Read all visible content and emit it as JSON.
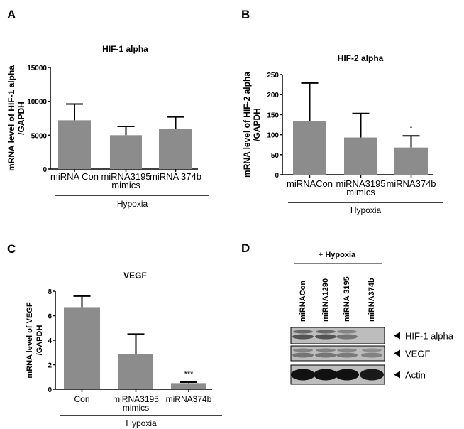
{
  "panel_letters": [
    "A",
    "B",
    "C",
    "D"
  ],
  "colors": {
    "bar": "#8c8c8c",
    "ink": "#000000",
    "blot_bg": "#bdbdbd",
    "band": "#3a3a3a"
  },
  "chart_data": [
    {
      "type": "bar",
      "panel": "A",
      "title": "HIF-1 alpha",
      "ylabel": [
        "mRNA level of HIF-1 alpha",
        "/GAPDH"
      ],
      "categories": [
        [
          "miRNA Con"
        ],
        [
          "miRNA3195",
          "mimics"
        ],
        [
          "miRNA 374b"
        ]
      ],
      "values": [
        7200,
        5000,
        5900
      ],
      "error_upper": [
        9600,
        6300,
        7700
      ],
      "significance": [
        "",
        "",
        ""
      ],
      "ylim": [
        0,
        15000
      ],
      "yticks": [
        0,
        5000,
        10000,
        15000
      ],
      "group_label": "Hypoxia"
    },
    {
      "type": "bar",
      "panel": "B",
      "title": "HIF-2 alpha",
      "ylabel": [
        "mRNA level of HIF-2 alpha",
        "/GAPDH"
      ],
      "categories": [
        [
          "miRNACon"
        ],
        [
          "miRNA3195",
          "mimics"
        ],
        [
          "miRNA374b"
        ]
      ],
      "values": [
        133,
        93,
        68
      ],
      "error_upper": [
        229,
        153,
        97
      ],
      "significance": [
        "",
        "",
        "*"
      ],
      "ylim": [
        0,
        250
      ],
      "yticks": [
        0,
        50,
        100,
        150,
        200,
        250
      ],
      "group_label": "Hypoxia"
    },
    {
      "type": "bar",
      "panel": "C",
      "title": "VEGF",
      "ylabel": [
        "mRNA level of VEGF",
        "/GAPDH"
      ],
      "categories": [
        [
          "Con"
        ],
        [
          "miRNA3195",
          "mimics"
        ],
        [
          "miRNA374b"
        ]
      ],
      "values": [
        6.7,
        2.85,
        0.5
      ],
      "error_upper": [
        7.6,
        4.5,
        0.58
      ],
      "significance": [
        "",
        "",
        "***"
      ],
      "ylim": [
        0,
        8
      ],
      "yticks": [
        0,
        2,
        4,
        6,
        8
      ],
      "group_label": "Hypoxia"
    }
  ],
  "western_blot": {
    "panel": "D",
    "header": "+ Hypoxia",
    "lanes": [
      "miRNACon",
      "miRNA1290",
      "miRNA 3195",
      "miRNA374b"
    ],
    "rows": [
      {
        "label": "HIF-1 alpha",
        "intensity": [
          0.8,
          0.8,
          0.55,
          0.0
        ]
      },
      {
        "label": "VEGF",
        "intensity": [
          0.55,
          0.55,
          0.5,
          0.45
        ]
      },
      {
        "label": "Actin",
        "intensity": [
          1.0,
          1.0,
          1.0,
          0.95
        ]
      }
    ]
  }
}
